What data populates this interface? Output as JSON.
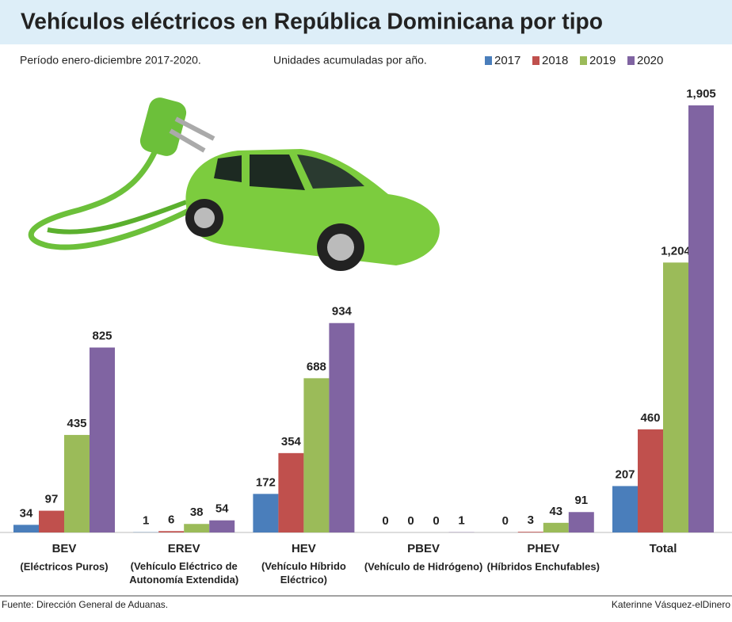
{
  "chart_data": {
    "type": "bar",
    "title": "Vehículos eléctricos en República Dominicana por tipo",
    "subtitle": "Período enero-diciembre 2017-2020.",
    "note": "Unidades acumuladas por año.",
    "categories": [
      "BEV",
      "EREV",
      "HEV",
      "PBEV",
      "PHEV",
      "Total"
    ],
    "category_descriptions": [
      "(Eléctricos Puros)",
      "(Vehículo Eléctrico de Autonomía Extendida)",
      "(Vehículo Híbrido Eléctrico)",
      "(Vehículo de Hidrógeno)",
      "(Híbridos Enchufables)",
      null
    ],
    "series": [
      {
        "name": "2017",
        "color": "#4a7ebb",
        "values": [
          34,
          1,
          172,
          0,
          0,
          207
        ]
      },
      {
        "name": "2018",
        "color": "#c0504d",
        "values": [
          97,
          6,
          354,
          0,
          3,
          460
        ]
      },
      {
        "name": "2019",
        "color": "#9bbb59",
        "values": [
          435,
          38,
          688,
          0,
          43,
          1204
        ],
        "value_labels": [
          "435",
          "38",
          "688",
          "0",
          "43",
          "1,204"
        ]
      },
      {
        "name": "2020",
        "color": "#8064a2",
        "values": [
          825,
          54,
          934,
          1,
          91,
          1905
        ],
        "value_labels": [
          "825",
          "54",
          "934",
          "1",
          "91",
          "1,905"
        ]
      }
    ],
    "source": "Fuente: Dirección General de Aduanas.",
    "credit": "Katerinne Vásquez-elDinero"
  }
}
